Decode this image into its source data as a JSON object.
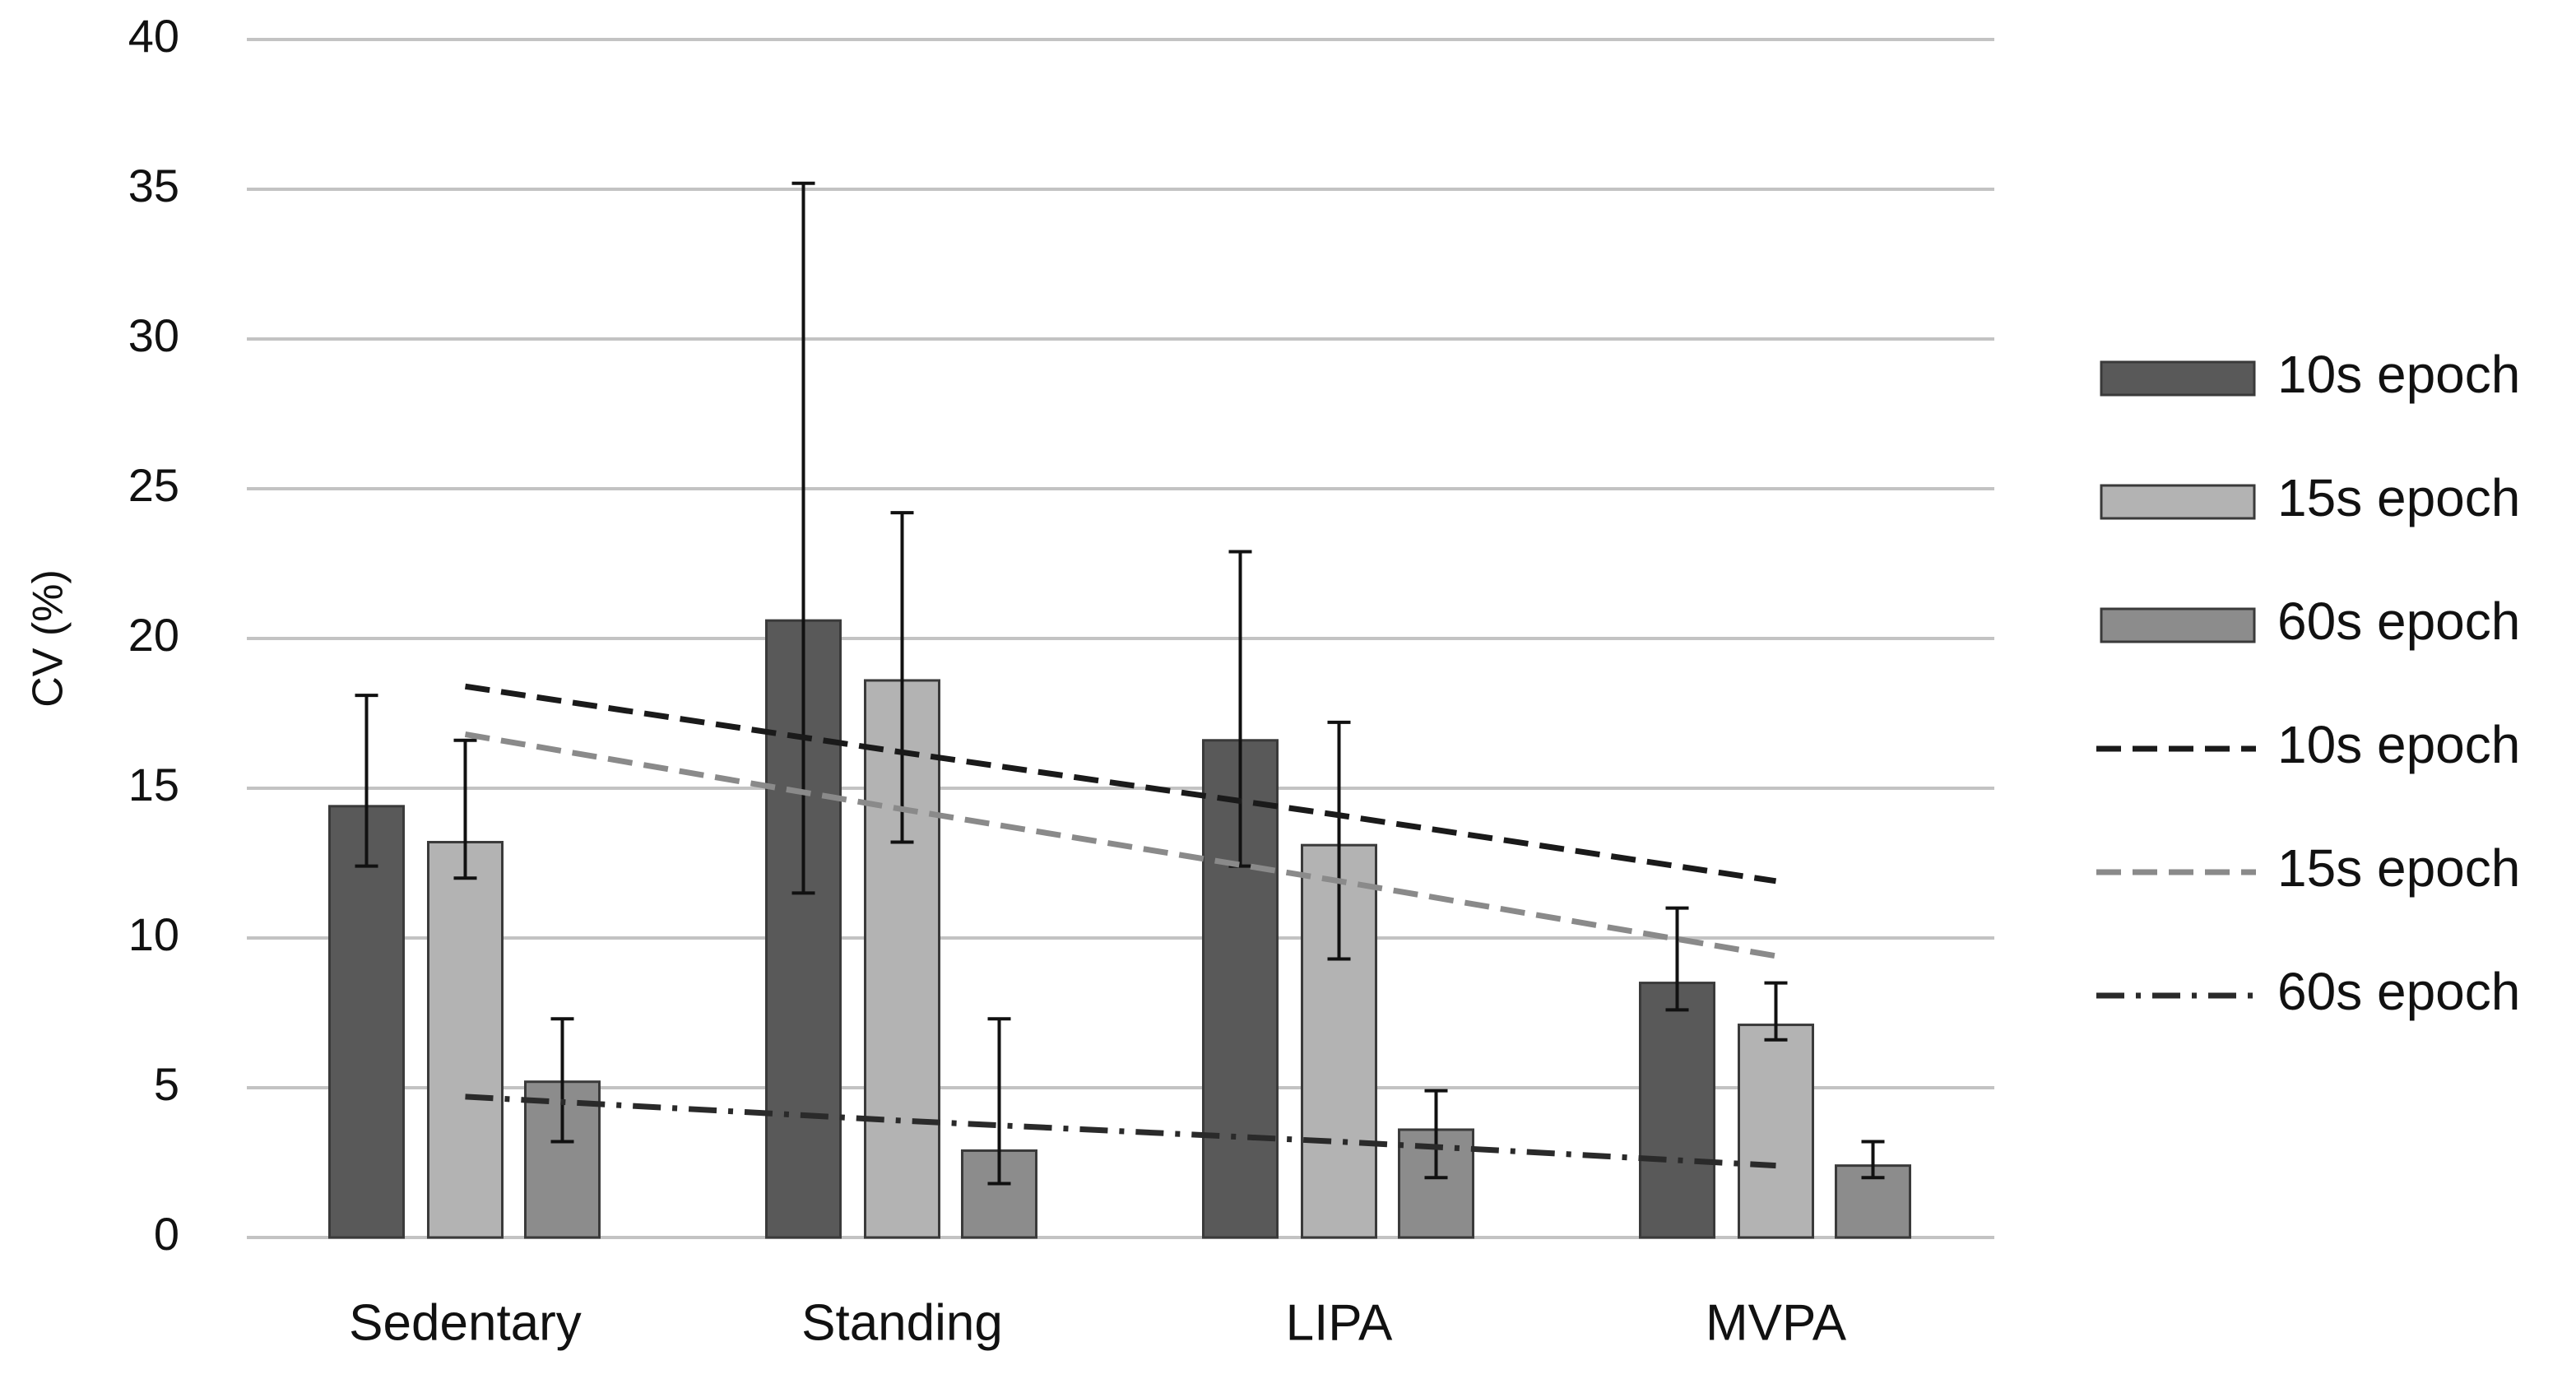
{
  "chart_data": {
    "type": "bar",
    "y_label": "CV (%)",
    "categories": [
      "Sedentary",
      "Standing",
      "LIPA",
      "MVPA"
    ],
    "ylim": [
      0,
      40
    ],
    "yticks": [
      0,
      5,
      10,
      15,
      20,
      25,
      30,
      35,
      40
    ],
    "grid": true,
    "legend": "right",
    "series": [
      {
        "name": "10s epoch",
        "kind": "bar",
        "color": "#595959",
        "values": [
          14.4,
          20.6,
          16.6,
          8.5
        ],
        "err_plus": [
          3.7,
          14.6,
          6.3,
          2.5
        ],
        "err_minus": [
          2.0,
          9.1,
          4.2,
          0.9
        ]
      },
      {
        "name": "15s epoch",
        "kind": "bar",
        "color": "#b3b3b3",
        "values": [
          13.2,
          18.6,
          13.1,
          7.1
        ],
        "err_plus": [
          3.4,
          5.6,
          4.1,
          1.4
        ],
        "err_minus": [
          1.2,
          5.4,
          3.8,
          0.5
        ]
      },
      {
        "name": "60s epoch",
        "kind": "bar",
        "color": "#8c8c8c",
        "values": [
          5.2,
          2.9,
          3.6,
          2.4
        ],
        "err_plus": [
          2.1,
          4.4,
          1.3,
          0.8
        ],
        "err_minus": [
          2.0,
          1.1,
          1.6,
          0.4
        ]
      },
      {
        "name": "10s epoch",
        "kind": "line",
        "color": "#1a1a1a",
        "dash": "dashed",
        "values": [
          18.4,
          16.2,
          14.1,
          11.9
        ]
      },
      {
        "name": "15s epoch",
        "kind": "line",
        "color": "#8a8a8a",
        "dash": "dashed",
        "values": [
          16.8,
          14.3,
          11.9,
          9.4
        ]
      },
      {
        "name": "60s epoch",
        "kind": "line",
        "color": "#2a2a2a",
        "dash": "dashdot",
        "values": [
          4.7,
          3.9,
          3.2,
          2.4
        ]
      }
    ]
  }
}
